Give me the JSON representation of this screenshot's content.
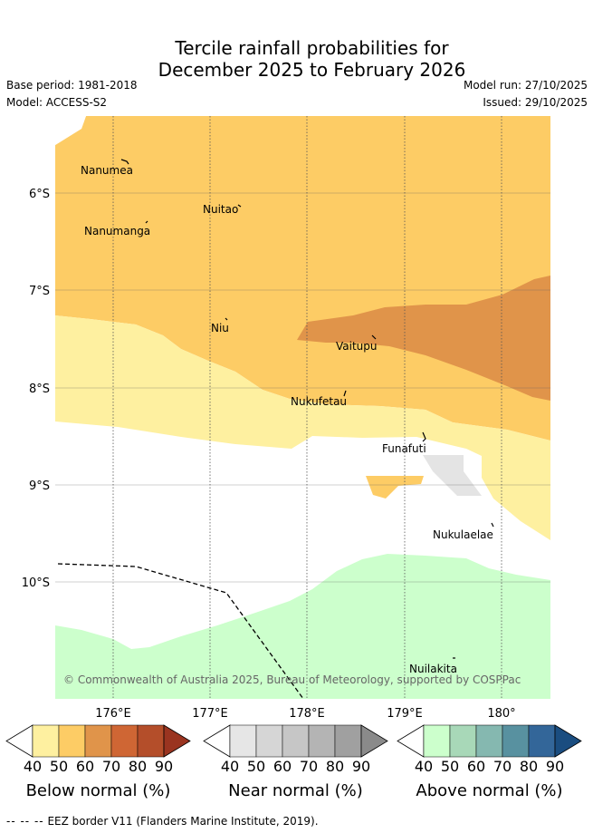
{
  "title": {
    "line1": "Tercile rainfall probabilities for",
    "line2": "December 2025 to February 2026"
  },
  "meta": {
    "base_period": "Base period: 1981-2018",
    "model": "Model: ACCESS-S2",
    "model_run": "Model run: 27/10/2025",
    "issued": "Issued: 29/10/2025"
  },
  "map": {
    "lat_labels": [
      "6°S",
      "7°S",
      "8°S",
      "9°S",
      "10°S"
    ],
    "lon_labels": [
      "176°E",
      "177°E",
      "178°E",
      "179°E",
      "180°"
    ],
    "places": [
      "Nanumea",
      "Nuitao",
      "Nanumanga",
      "Niu",
      "Vaitupu",
      "Nukufetau",
      "Funafuti",
      "Nukulaelae",
      "Nuilakita"
    ],
    "copyright": "© Commonwealth of Australia 2025, Bureau of Meteorology, supported by COSPPac"
  },
  "colorbars": [
    {
      "label": "Below normal (%)",
      "ticks": [
        "40",
        "50",
        "60",
        "70",
        "80",
        "90"
      ],
      "colors": [
        "#fef0a0",
        "#fdcc65",
        "#e0944a",
        "#cf6634",
        "#b44e2a",
        "#9a3420"
      ]
    },
    {
      "label": "Near normal (%)",
      "ticks": [
        "40",
        "50",
        "60",
        "70",
        "80",
        "90"
      ],
      "colors": [
        "#e6e6e6",
        "#d6d6d6",
        "#c6c6c6",
        "#b4b4b4",
        "#a0a0a0",
        "#8a8a8a"
      ]
    },
    {
      "label": "Above normal (%)",
      "ticks": [
        "40",
        "50",
        "60",
        "70",
        "80",
        "90"
      ],
      "colors": [
        "#ccffcc",
        "#a8d8b8",
        "#85b8b0",
        "#5891a0",
        "#336699",
        "#1a4d80"
      ]
    }
  ],
  "footer": {
    "legend_symbol": "-- -- --",
    "legend_text": "EEZ border V11 (Flanders Marine Institute, 2019)."
  }
}
